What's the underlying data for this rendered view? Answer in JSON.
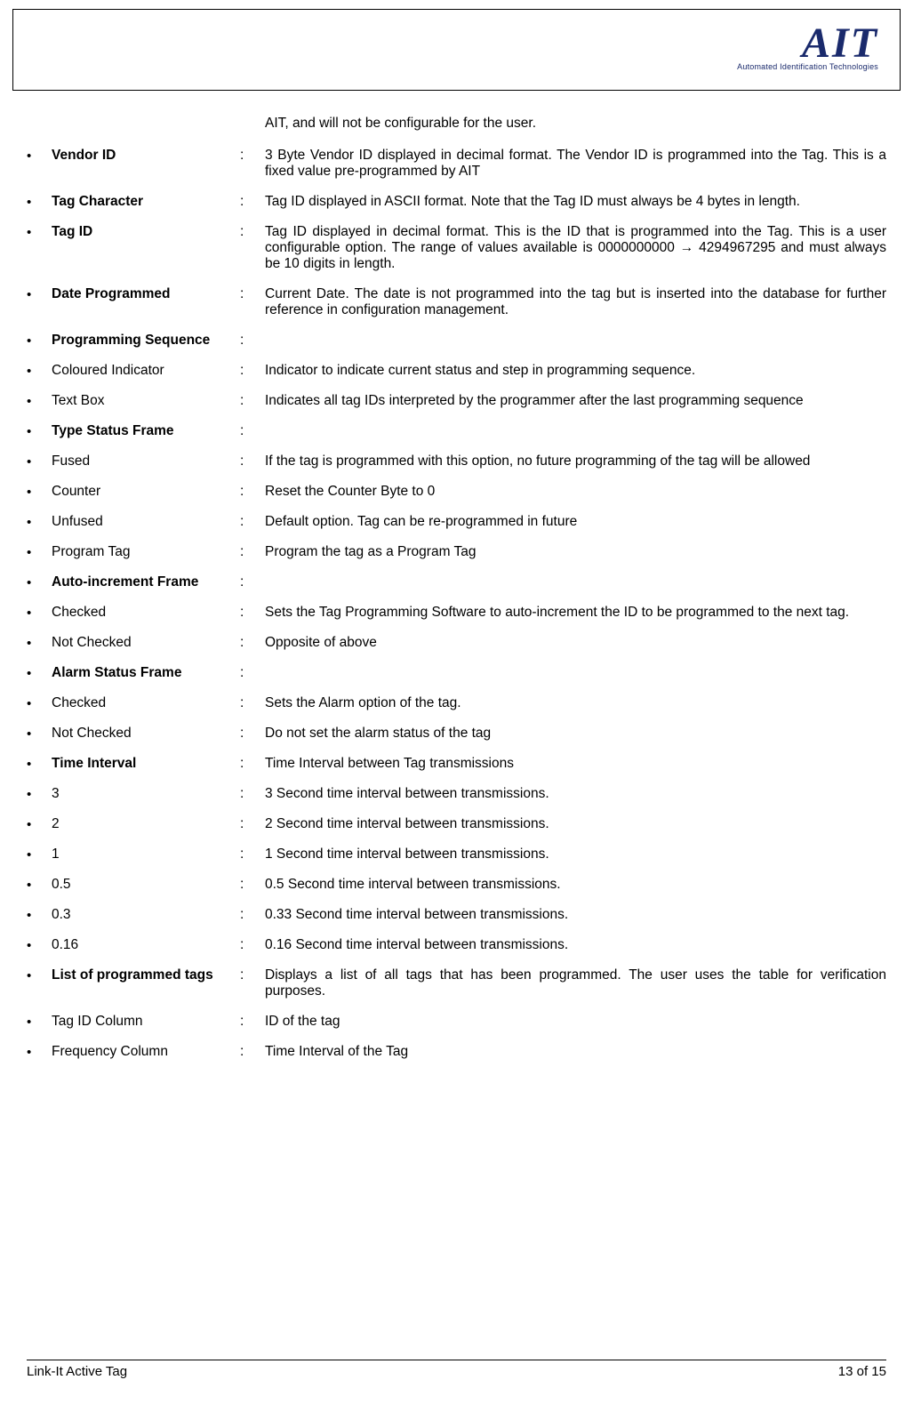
{
  "logo": {
    "main": "AIT",
    "sub": "Automated Identification Technologies"
  },
  "intro": "AIT, and will not be configurable for the user.",
  "items": [
    {
      "label": "Vendor ID",
      "bold": true,
      "desc": "3 Byte Vendor ID displayed in decimal format. The Vendor ID is programmed into the Tag. This is a fixed value pre-programmed by AIT"
    },
    {
      "label": "Tag Character",
      "bold": true,
      "desc": "Tag ID displayed in ASCII format. Note that the Tag ID must always be 4 bytes in length."
    },
    {
      "label": "Tag ID",
      "bold": true,
      "desc": "Tag ID displayed in decimal format. This is the ID that is programmed into the Tag. This is a user configurable option. The range of values available is 0000000000 → 4294967295 and must always be 10 digits in length."
    },
    {
      "label": "Date Programmed",
      "bold": true,
      "desc": "Current Date. The date is not programmed into the tag but is inserted into the database for further reference in configuration management."
    },
    {
      "label": "Programming Sequence",
      "bold": true,
      "desc": ""
    },
    {
      "label": "Coloured Indicator",
      "bold": false,
      "desc": "Indicator to indicate current status and step in programming sequence."
    },
    {
      "label": "Text Box",
      "bold": false,
      "desc": "Indicates all tag IDs interpreted by the programmer after the last programming sequence"
    },
    {
      "label": "Type Status Frame",
      "bold": true,
      "desc": ""
    },
    {
      "label": "Fused",
      "bold": false,
      "desc": "If the tag is programmed with this option, no future programming of the tag will be allowed"
    },
    {
      "label": "Counter",
      "bold": false,
      "desc": "Reset the Counter Byte to 0"
    },
    {
      "label": "Unfused",
      "bold": false,
      "desc": "Default option. Tag can be re-programmed in future"
    },
    {
      "label": "Program Tag",
      "bold": false,
      "desc": "Program the tag as a Program Tag"
    },
    {
      "label": "Auto-increment Frame",
      "bold": true,
      "desc": ""
    },
    {
      "label": "Checked",
      "bold": false,
      "desc": "Sets the Tag Programming Software to auto-increment the ID to be programmed to the next tag."
    },
    {
      "label": "Not Checked",
      "bold": false,
      "desc": "Opposite of above"
    },
    {
      "label": "Alarm Status Frame",
      "bold": true,
      "desc": ""
    },
    {
      "label": "Checked",
      "bold": false,
      "desc": "Sets the Alarm option of the tag."
    },
    {
      "label": "Not Checked",
      "bold": false,
      "desc": "Do not set the alarm status of the tag"
    },
    {
      "label": "Time Interval",
      "bold": true,
      "desc": "Time Interval between Tag transmissions"
    },
    {
      "label": "3",
      "bold": false,
      "desc": "3 Second time interval between transmissions."
    },
    {
      "label": "2",
      "bold": false,
      "desc": "2 Second time interval between transmissions."
    },
    {
      "label": "1",
      "bold": false,
      "desc": "1 Second time interval between transmissions."
    },
    {
      "label": "0.5",
      "bold": false,
      "desc": "0.5 Second time interval between transmissions."
    },
    {
      "label": "0.3",
      "bold": false,
      "desc": "0.33 Second time interval between transmissions."
    },
    {
      "label": "0.16",
      "bold": false,
      "desc": "0.16 Second time interval between transmissions."
    },
    {
      "label": "List of programmed tags",
      "bold": true,
      "desc": "Displays a list of all tags that has been programmed. The user uses the table for verification purposes."
    },
    {
      "label": "Tag ID Column",
      "bold": false,
      "desc": "ID of the tag"
    },
    {
      "label": "Frequency Column",
      "bold": false,
      "desc": "Time Interval of the Tag"
    }
  ],
  "footer": {
    "left": "Link-It Active Tag",
    "right": "13 of 15"
  }
}
